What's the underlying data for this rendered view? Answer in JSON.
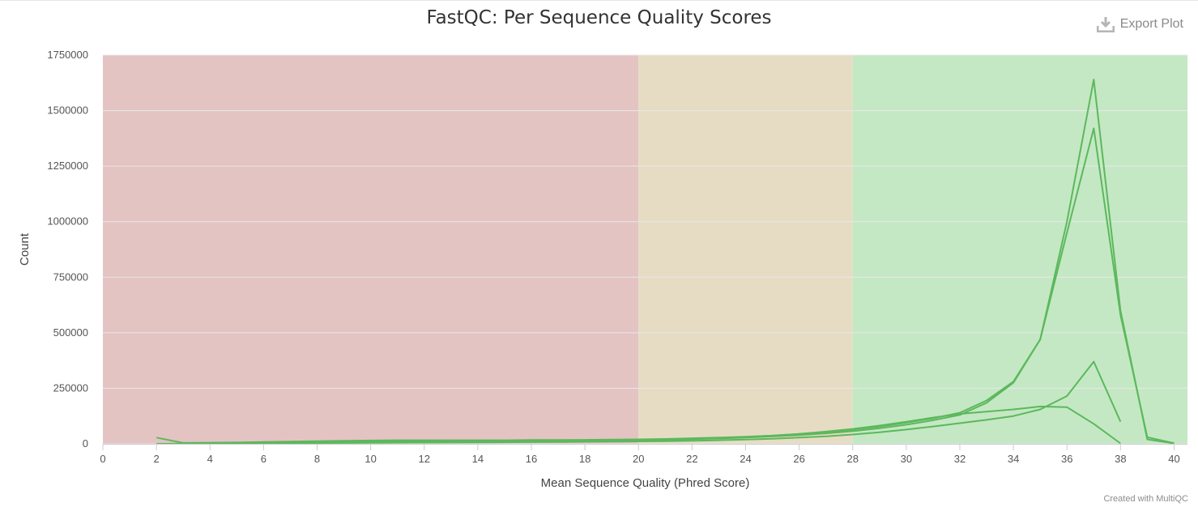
{
  "header": {
    "title": "FastQC: Per Sequence Quality Scores",
    "export_label": "Export Plot"
  },
  "footer": {
    "credit": "Created with MultiQC"
  },
  "colors": {
    "line": "#5cb85c",
    "band_fail": "#e4c3c3",
    "band_warn": "#e6dcc4",
    "band_pass": "#c4e8c4",
    "grid": "#e8e8e8"
  },
  "chart_data": {
    "type": "line",
    "title": "FastQC: Per Sequence Quality Scores",
    "xlabel": "Mean Sequence Quality (Phred Score)",
    "ylabel": "Count",
    "xlim": [
      0,
      40.5
    ],
    "ylim": [
      0,
      1750000
    ],
    "x_ticks": [
      "0",
      "2",
      "4",
      "6",
      "8",
      "10",
      "12",
      "14",
      "16",
      "18",
      "20",
      "22",
      "24",
      "26",
      "28",
      "30",
      "32",
      "34",
      "36",
      "38",
      "40"
    ],
    "y_ticks": [
      "0",
      "250000",
      "500000",
      "750000",
      "1000000",
      "1250000",
      "1500000",
      "1750000"
    ],
    "grid": true,
    "bands": [
      {
        "from": 0,
        "to": 20,
        "status": "fail"
      },
      {
        "from": 20,
        "to": 28,
        "status": "warn"
      },
      {
        "from": 28,
        "to": 40.5,
        "status": "pass"
      }
    ],
    "series": [
      {
        "x": [
          2,
          3,
          4,
          5,
          6,
          7,
          8,
          9,
          10,
          11,
          12,
          13,
          14,
          15,
          16,
          17,
          18,
          19,
          20,
          21,
          22,
          23,
          24,
          25,
          26,
          27,
          28,
          29,
          30,
          31,
          32,
          33,
          34,
          35,
          36,
          37,
          38,
          39,
          40
        ],
        "values": [
          0,
          1000,
          1500,
          2000,
          2500,
          3000,
          3500,
          4000,
          4500,
          5000,
          5500,
          6000,
          6500,
          7000,
          7500,
          8000,
          9000,
          10000,
          11000,
          12000,
          14000,
          16000,
          19000,
          23000,
          28000,
          34000,
          42000,
          52000,
          64000,
          78000,
          93000,
          108000,
          125000,
          155000,
          215000,
          370000,
          100000,
          null,
          null
        ]
      },
      {
        "x": [
          2,
          3,
          4,
          5,
          6,
          7,
          8,
          9,
          10,
          11,
          12,
          13,
          14,
          15,
          16,
          17,
          18,
          19,
          20,
          21,
          22,
          23,
          24,
          25,
          26,
          27,
          28,
          29,
          30,
          31,
          32,
          33,
          34,
          35,
          36,
          37,
          38,
          39,
          40
        ],
        "values": [
          28000,
          4000,
          5000,
          6000,
          8000,
          10000,
          12000,
          14000,
          15000,
          16000,
          16000,
          16000,
          16000,
          16000,
          17000,
          17000,
          18000,
          19000,
          20000,
          22000,
          25000,
          28000,
          32000,
          37000,
          44000,
          53000,
          64000,
          78000,
          95000,
          115000,
          140000,
          195000,
          280000,
          470000,
          1000000,
          1640000,
          600000,
          20000,
          2000
        ]
      },
      {
        "x": [
          2,
          3,
          4,
          5,
          6,
          7,
          8,
          9,
          10,
          11,
          12,
          13,
          14,
          15,
          16,
          17,
          18,
          19,
          20,
          21,
          22,
          23,
          24,
          25,
          26,
          27,
          28,
          29,
          30,
          31,
          32,
          33,
          34,
          35,
          36,
          37,
          38,
          39,
          40
        ],
        "values": [
          null,
          2000,
          3000,
          4000,
          5000,
          6000,
          7000,
          8000,
          9000,
          10000,
          10000,
          10000,
          10000,
          11000,
          11000,
          12000,
          13000,
          14000,
          16000,
          18000,
          21000,
          24000,
          28000,
          33000,
          39000,
          47000,
          57000,
          70000,
          86000,
          106000,
          130000,
          185000,
          275000,
          470000,
          950000,
          1420000,
          580000,
          30000,
          3000
        ]
      },
      {
        "x": [
          2,
          3,
          4,
          5,
          6,
          7,
          8,
          9,
          10,
          11,
          12,
          13,
          14,
          15,
          16,
          17,
          18,
          19,
          20,
          21,
          22,
          23,
          24,
          25,
          26,
          27,
          28,
          29,
          30,
          31,
          32,
          33,
          34,
          35,
          36,
          37,
          38,
          39,
          40
        ],
        "values": [
          null,
          1500,
          2500,
          3500,
          4500,
          5500,
          6500,
          7500,
          8500,
          9000,
          9500,
          10000,
          10500,
          11000,
          11500,
          12500,
          13500,
          15000,
          17000,
          19000,
          22000,
          26000,
          31000,
          37000,
          45000,
          55000,
          67000,
          82000,
          99000,
          118000,
          135000,
          145000,
          155000,
          168000,
          165000,
          90000,
          2000,
          null,
          null
        ]
      }
    ]
  }
}
